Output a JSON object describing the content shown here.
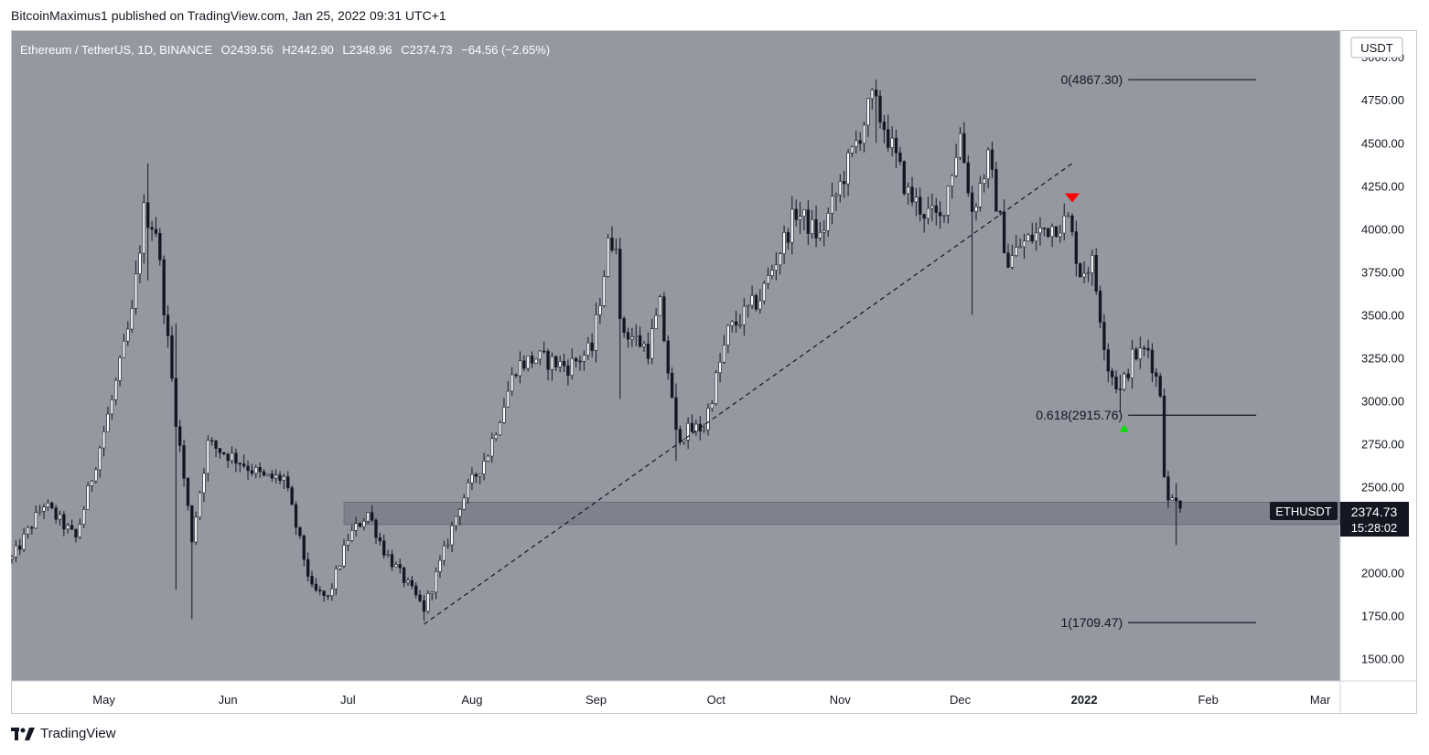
{
  "caption": "BitcoinMaximus1 published on TradingView.com, Jan 25, 2022 09:31 UTC+1",
  "footer_brand": "TradingView",
  "icons": {
    "brand_logo": "tradingview-logo-icon"
  },
  "colors": {
    "plot_bg": "#9598a1",
    "candle_up": "#ffffff",
    "candle_down": "#131722",
    "zone": "#787b86",
    "bear_marker": "#ff0000",
    "bull_marker": "#00e000"
  },
  "legend": {
    "symbol": "Ethereum / TetherUS, 1D, BINANCE",
    "o_label": "O",
    "o_value": "2439.56",
    "h_label": "H",
    "h_value": "2442.90",
    "l_label": "L",
    "l_value": "2348.96",
    "c_label": "C",
    "c_value": "2374.73",
    "change": "−64.56 (−2.65%)"
  },
  "currency_label": "USDT",
  "price_tag": {
    "ticker": "ETHUSDT",
    "price": "2374.73",
    "countdown": "15:28:02"
  },
  "chart_data": {
    "type": "candlestick",
    "title": "Ethereum / TetherUS, 1D, BINANCE",
    "y_ticks": [
      5000,
      4750,
      4500,
      4250,
      4000,
      3750,
      3500,
      3250,
      3000,
      2750,
      2500,
      2000,
      1750,
      1500
    ],
    "y_tick_labels": [
      "5000.00",
      "4750.00",
      "4500.00",
      "4250.00",
      "4000.00",
      "3750.00",
      "3500.00",
      "3250.00",
      "3000.00",
      "2750.00",
      "2500.00",
      "2000.00",
      "1750.00",
      "1500.00"
    ],
    "ylim": [
      1370,
      5150
    ],
    "x_ticks": [
      {
        "label": "May",
        "date": "2021-05-01"
      },
      {
        "label": "Jun",
        "date": "2021-06-01"
      },
      {
        "label": "Jul",
        "date": "2021-07-01"
      },
      {
        "label": "Aug",
        "date": "2021-08-01"
      },
      {
        "label": "Sep",
        "date": "2021-09-01"
      },
      {
        "label": "Oct",
        "date": "2021-10-01"
      },
      {
        "label": "Nov",
        "date": "2021-11-01"
      },
      {
        "label": "Dec",
        "date": "2021-12-01"
      },
      {
        "label": "2022",
        "date": "2022-01-01"
      },
      {
        "label": "Feb",
        "date": "2022-02-01"
      },
      {
        "label": "Mar",
        "date": "2022-03-01"
      }
    ],
    "xlim": [
      "2021-04-08",
      "2022-03-06"
    ],
    "close_path": [
      [
        "2021-04-08",
        2080
      ],
      [
        "2021-04-16",
        2400
      ],
      [
        "2021-04-24",
        2200
      ],
      [
        "2021-05-03",
        3000
      ],
      [
        "2021-05-08",
        3500
      ],
      [
        "2021-05-11",
        4100
      ],
      [
        "2021-05-14",
        4000
      ],
      [
        "2021-05-19",
        2900
      ],
      [
        "2021-05-23",
        2200
      ],
      [
        "2021-05-27",
        2750
      ],
      [
        "2021-06-04",
        2650
      ],
      [
        "2021-06-10",
        2550
      ],
      [
        "2021-06-15",
        2550
      ],
      [
        "2021-06-22",
        1900
      ],
      [
        "2021-06-26",
        1850
      ],
      [
        "2021-07-01",
        2200
      ],
      [
        "2021-07-06",
        2350
      ],
      [
        "2021-07-10",
        2130
      ],
      [
        "2021-07-20",
        1790
      ],
      [
        "2021-07-24",
        2050
      ],
      [
        "2021-07-29",
        2400
      ],
      [
        "2021-08-05",
        2700
      ],
      [
        "2021-08-12",
        3200
      ],
      [
        "2021-08-17",
        3250
      ],
      [
        "2021-08-25",
        3200
      ],
      [
        "2021-08-31",
        3300
      ],
      [
        "2021-09-04",
        3900
      ],
      [
        "2021-09-06",
        3950
      ],
      [
        "2021-09-07",
        3430
      ],
      [
        "2021-09-14",
        3300
      ],
      [
        "2021-09-17",
        3550
      ],
      [
        "2021-09-21",
        2800
      ],
      [
        "2021-09-28",
        2850
      ],
      [
        "2021-10-04",
        3400
      ],
      [
        "2021-10-12",
        3600
      ],
      [
        "2021-10-21",
        4100
      ],
      [
        "2021-10-27",
        3950
      ],
      [
        "2021-11-05",
        4500
      ],
      [
        "2021-11-09",
        4750
      ],
      [
        "2021-11-12",
        4600
      ],
      [
        "2021-11-18",
        4200
      ],
      [
        "2021-11-22",
        4100
      ],
      [
        "2021-11-26",
        4050
      ],
      [
        "2021-12-01",
        4550
      ],
      [
        "2021-12-04",
        4100
      ],
      [
        "2021-12-08",
        4400
      ],
      [
        "2021-12-13",
        3800
      ],
      [
        "2021-12-16",
        3900
      ],
      [
        "2021-12-22",
        4000
      ],
      [
        "2021-12-28",
        4050
      ],
      [
        "2021-12-31",
        3750
      ],
      [
        "2022-01-03",
        3800
      ],
      [
        "2022-01-07",
        3200
      ],
      [
        "2022-01-10",
        3050
      ],
      [
        "2022-01-13",
        3250
      ],
      [
        "2022-01-17",
        3300
      ],
      [
        "2022-01-20",
        3050
      ],
      [
        "2022-01-21",
        2600
      ],
      [
        "2022-01-22",
        2400
      ],
      [
        "2022-01-24",
        2450
      ],
      [
        "2022-01-25",
        2374.73
      ]
    ],
    "highlights": [
      {
        "date": "2021-05-12",
        "high": 4380,
        "low": 3700
      },
      {
        "date": "2021-05-19",
        "high": 3450,
        "low": 1900
      },
      {
        "date": "2021-05-23",
        "high": 2300,
        "low": 1730
      },
      {
        "date": "2021-07-20",
        "high": 1870,
        "low": 1720
      },
      {
        "date": "2021-09-07",
        "high": 3950,
        "low": 3010
      },
      {
        "date": "2021-09-21",
        "high": 3100,
        "low": 2650
      },
      {
        "date": "2021-11-10",
        "high": 4868,
        "low": 4500
      },
      {
        "date": "2021-12-04",
        "high": 4250,
        "low": 3500
      },
      {
        "date": "2022-01-10",
        "high": 3150,
        "low": 2930
      },
      {
        "date": "2022-01-24",
        "high": 2520,
        "low": 2160
      }
    ],
    "support_zone": {
      "from_date": "2021-06-30",
      "to_date": "2022-03-06",
      "low": 2280,
      "high": 2410
    },
    "trendline": {
      "start": [
        "2021-07-20",
        1700
      ],
      "end": [
        "2021-12-29",
        4380
      ],
      "style": "dashed"
    },
    "fib_levels": [
      {
        "label": "0(4867.30)",
        "value": 4867.3,
        "from_date": "2022-01-12",
        "to_date": "2022-02-13"
      },
      {
        "label": "0.618(2915.76)",
        "value": 2915.76,
        "from_date": "2022-01-12",
        "to_date": "2022-02-13"
      },
      {
        "label": "1(1709.47)",
        "value": 1709.47,
        "from_date": "2022-01-12",
        "to_date": "2022-02-13"
      }
    ],
    "markers": [
      {
        "type": "bearish",
        "date": "2021-12-29",
        "value": 4180
      },
      {
        "type": "bullish",
        "date": "2022-01-11",
        "value": 2840
      }
    ],
    "last_price": 2374.73
  }
}
